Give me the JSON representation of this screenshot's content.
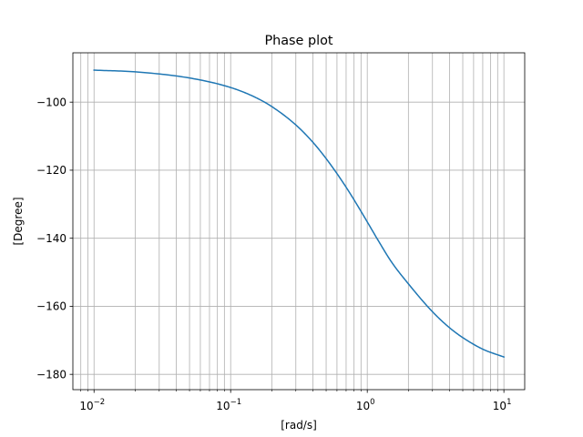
{
  "chart_data": {
    "type": "line",
    "title": "Phase plot",
    "xlabel": "[rad/s]",
    "ylabel": "[Degree]",
    "xscale": "log",
    "xlim": [
      0.007,
      14.2
    ],
    "ylim": [
      -184.5,
      -85.5
    ],
    "grid": "both",
    "x_major_ticks": [
      0.01,
      0.1,
      1,
      10
    ],
    "x_tick_bases": [
      "10",
      "10",
      "10",
      "10"
    ],
    "x_tick_exponents": [
      "−2",
      "−1",
      "0",
      "1"
    ],
    "y_ticks": [
      -100,
      -120,
      -140,
      -160,
      -180
    ],
    "y_tick_labels": [
      "−100",
      "−120",
      "−140",
      "−160",
      "−180"
    ],
    "line_color": "#1f77b4",
    "series": [
      {
        "x": [
          0.01,
          0.02,
          0.05,
          0.1,
          0.15,
          0.2,
          0.3,
          0.4,
          0.5,
          0.6,
          0.7,
          0.8,
          0.9,
          1.0,
          1.2,
          1.5,
          2.0,
          3.0,
          4.0,
          5.0,
          7.0,
          10.0
        ],
        "y": [
          -90.6,
          -91.1,
          -92.9,
          -95.7,
          -98.5,
          -101.3,
          -106.7,
          -111.8,
          -116.6,
          -121.0,
          -125.0,
          -128.7,
          -132.1,
          -135.2,
          -140.6,
          -146.9,
          -153.4,
          -161.6,
          -166.3,
          -169.2,
          -172.6,
          -174.9
        ]
      }
    ]
  }
}
